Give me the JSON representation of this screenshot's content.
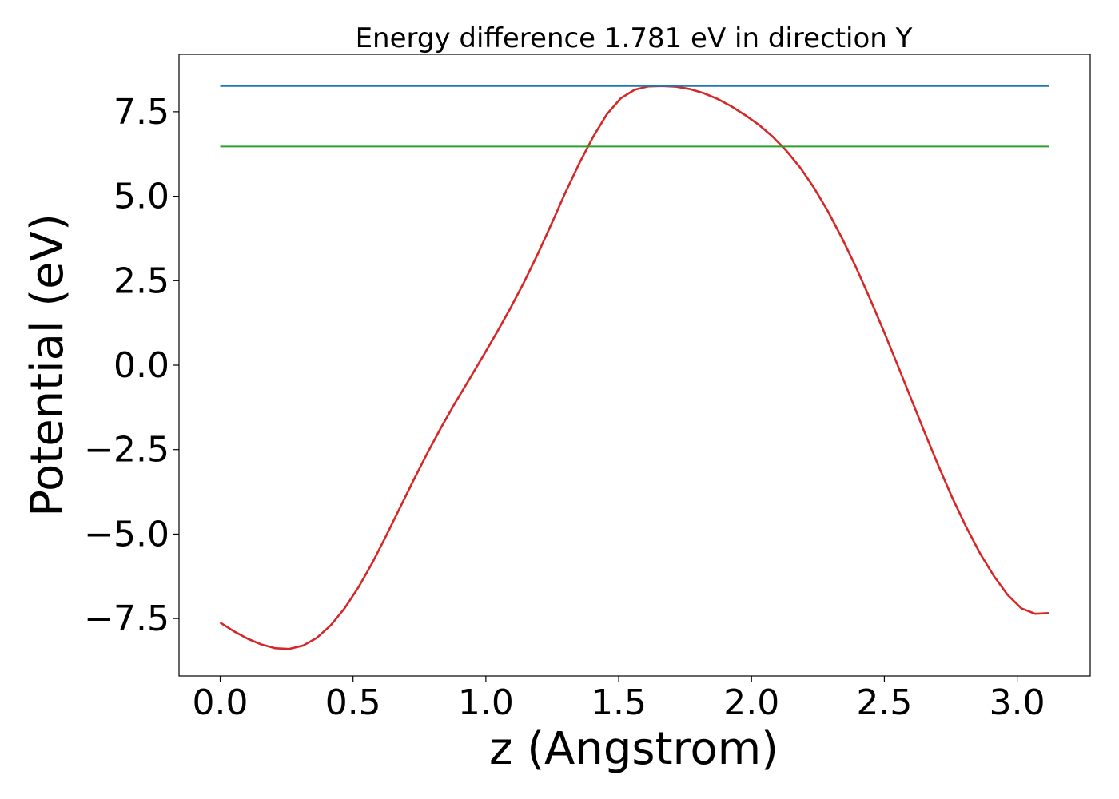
{
  "chart_data": {
    "type": "line",
    "title": "Energy difference 1.781 eV in direction Y",
    "xlabel": "z (Angstrom)",
    "ylabel": "Potential (eV)",
    "xlim": [
      -0.155,
      3.275
    ],
    "ylim": [
      -9.2,
      9.2
    ],
    "xticks": [
      0.0,
      0.5,
      1.0,
      1.5,
      2.0,
      2.5,
      3.0
    ],
    "xtick_labels": [
      "0.0",
      "0.5",
      "1.0",
      "1.5",
      "2.0",
      "2.5",
      "3.0"
    ],
    "yticks": [
      -7.5,
      -5.0,
      -2.5,
      0.0,
      2.5,
      5.0,
      7.5
    ],
    "ytick_labels": [
      "−7.5",
      "−5.0",
      "−2.5",
      "0.0",
      "2.5",
      "5.0",
      "7.5"
    ],
    "grid": false,
    "series": [
      {
        "color": "#d62728",
        "x": [
          0.0,
          0.052,
          0.104,
          0.156,
          0.208,
          0.26,
          0.312,
          0.364,
          0.416,
          0.468,
          0.52,
          0.572,
          0.624,
          0.676,
          0.728,
          0.78,
          0.832,
          0.884,
          0.936,
          0.988,
          1.04,
          1.092,
          1.144,
          1.196,
          1.248,
          1.3,
          1.352,
          1.404,
          1.456,
          1.508,
          1.56,
          1.612,
          1.664,
          1.716,
          1.768,
          1.82,
          1.872,
          1.924,
          1.976,
          2.028,
          2.08,
          2.132,
          2.184,
          2.236,
          2.288,
          2.34,
          2.392,
          2.444,
          2.496,
          2.548,
          2.6,
          2.652,
          2.704,
          2.756,
          2.808,
          2.86,
          2.912,
          2.964,
          3.016,
          3.068,
          3.12
        ],
        "values": [
          -7.62,
          -7.88,
          -8.1,
          -8.27,
          -8.38,
          -8.4,
          -8.3,
          -8.07,
          -7.7,
          -7.2,
          -6.58,
          -5.86,
          -5.06,
          -4.23,
          -3.4,
          -2.6,
          -1.84,
          -1.12,
          -0.44,
          0.25,
          0.95,
          1.68,
          2.46,
          3.3,
          4.2,
          5.12,
          5.98,
          6.76,
          7.43,
          7.9,
          8.15,
          8.25,
          8.26,
          8.24,
          8.17,
          8.05,
          7.88,
          7.66,
          7.4,
          7.11,
          6.76,
          6.34,
          5.84,
          5.24,
          4.55,
          3.77,
          2.92,
          2.0,
          1.04,
          0.04,
          -0.98,
          -2.0,
          -2.99,
          -3.93,
          -4.79,
          -5.57,
          -6.24,
          -6.8,
          -7.2,
          -7.36,
          -7.34
        ]
      },
      {
        "color": "#1f77b4",
        "x": [
          0.0,
          3.12
        ],
        "values": [
          8.26,
          8.26
        ]
      },
      {
        "color": "#2ca02c",
        "x": [
          0.0,
          3.12
        ],
        "values": [
          6.47,
          6.47
        ]
      }
    ]
  }
}
